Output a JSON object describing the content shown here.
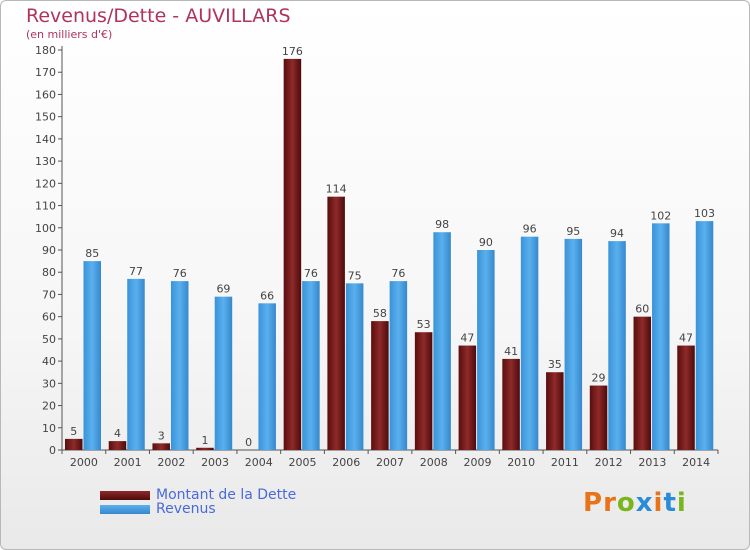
{
  "header": {
    "title": "Revenus/Dette - AUVILLARS",
    "subtitle": "(en milliers d'€)"
  },
  "legend": {
    "debt_label": "Montant de la Dette",
    "revenue_label": "Revenus"
  },
  "logo": {
    "text": "Proxiti"
  },
  "colors": {
    "debt": "#7a1a1a",
    "revenue": "#3f9be0",
    "title": "#b0335c",
    "legend_text": "#4a6ad8"
  },
  "chart_data": {
    "type": "bar",
    "title": "Revenus/Dette - AUVILLARS",
    "ylabel": "(en milliers d'€)",
    "xlabel": "",
    "categories": [
      "2000",
      "2001",
      "2002",
      "2003",
      "2004",
      "2005",
      "2006",
      "2007",
      "2008",
      "2009",
      "2010",
      "2011",
      "2012",
      "2013",
      "2014"
    ],
    "series": [
      {
        "name": "Montant de la Dette",
        "values": [
          5,
          4,
          3,
          1,
          0,
          176,
          114,
          58,
          53,
          47,
          41,
          35,
          29,
          60,
          47
        ]
      },
      {
        "name": "Revenus",
        "values": [
          85,
          77,
          76,
          69,
          66,
          76,
          75,
          76,
          98,
          90,
          96,
          95,
          94,
          102,
          103
        ]
      }
    ],
    "ylim": [
      0,
      180
    ],
    "yticks": [
      0,
      10,
      20,
      30,
      40,
      50,
      60,
      70,
      80,
      90,
      100,
      110,
      120,
      130,
      140,
      150,
      160,
      170,
      180
    ],
    "grid": false,
    "legend_position": "bottom-left"
  }
}
